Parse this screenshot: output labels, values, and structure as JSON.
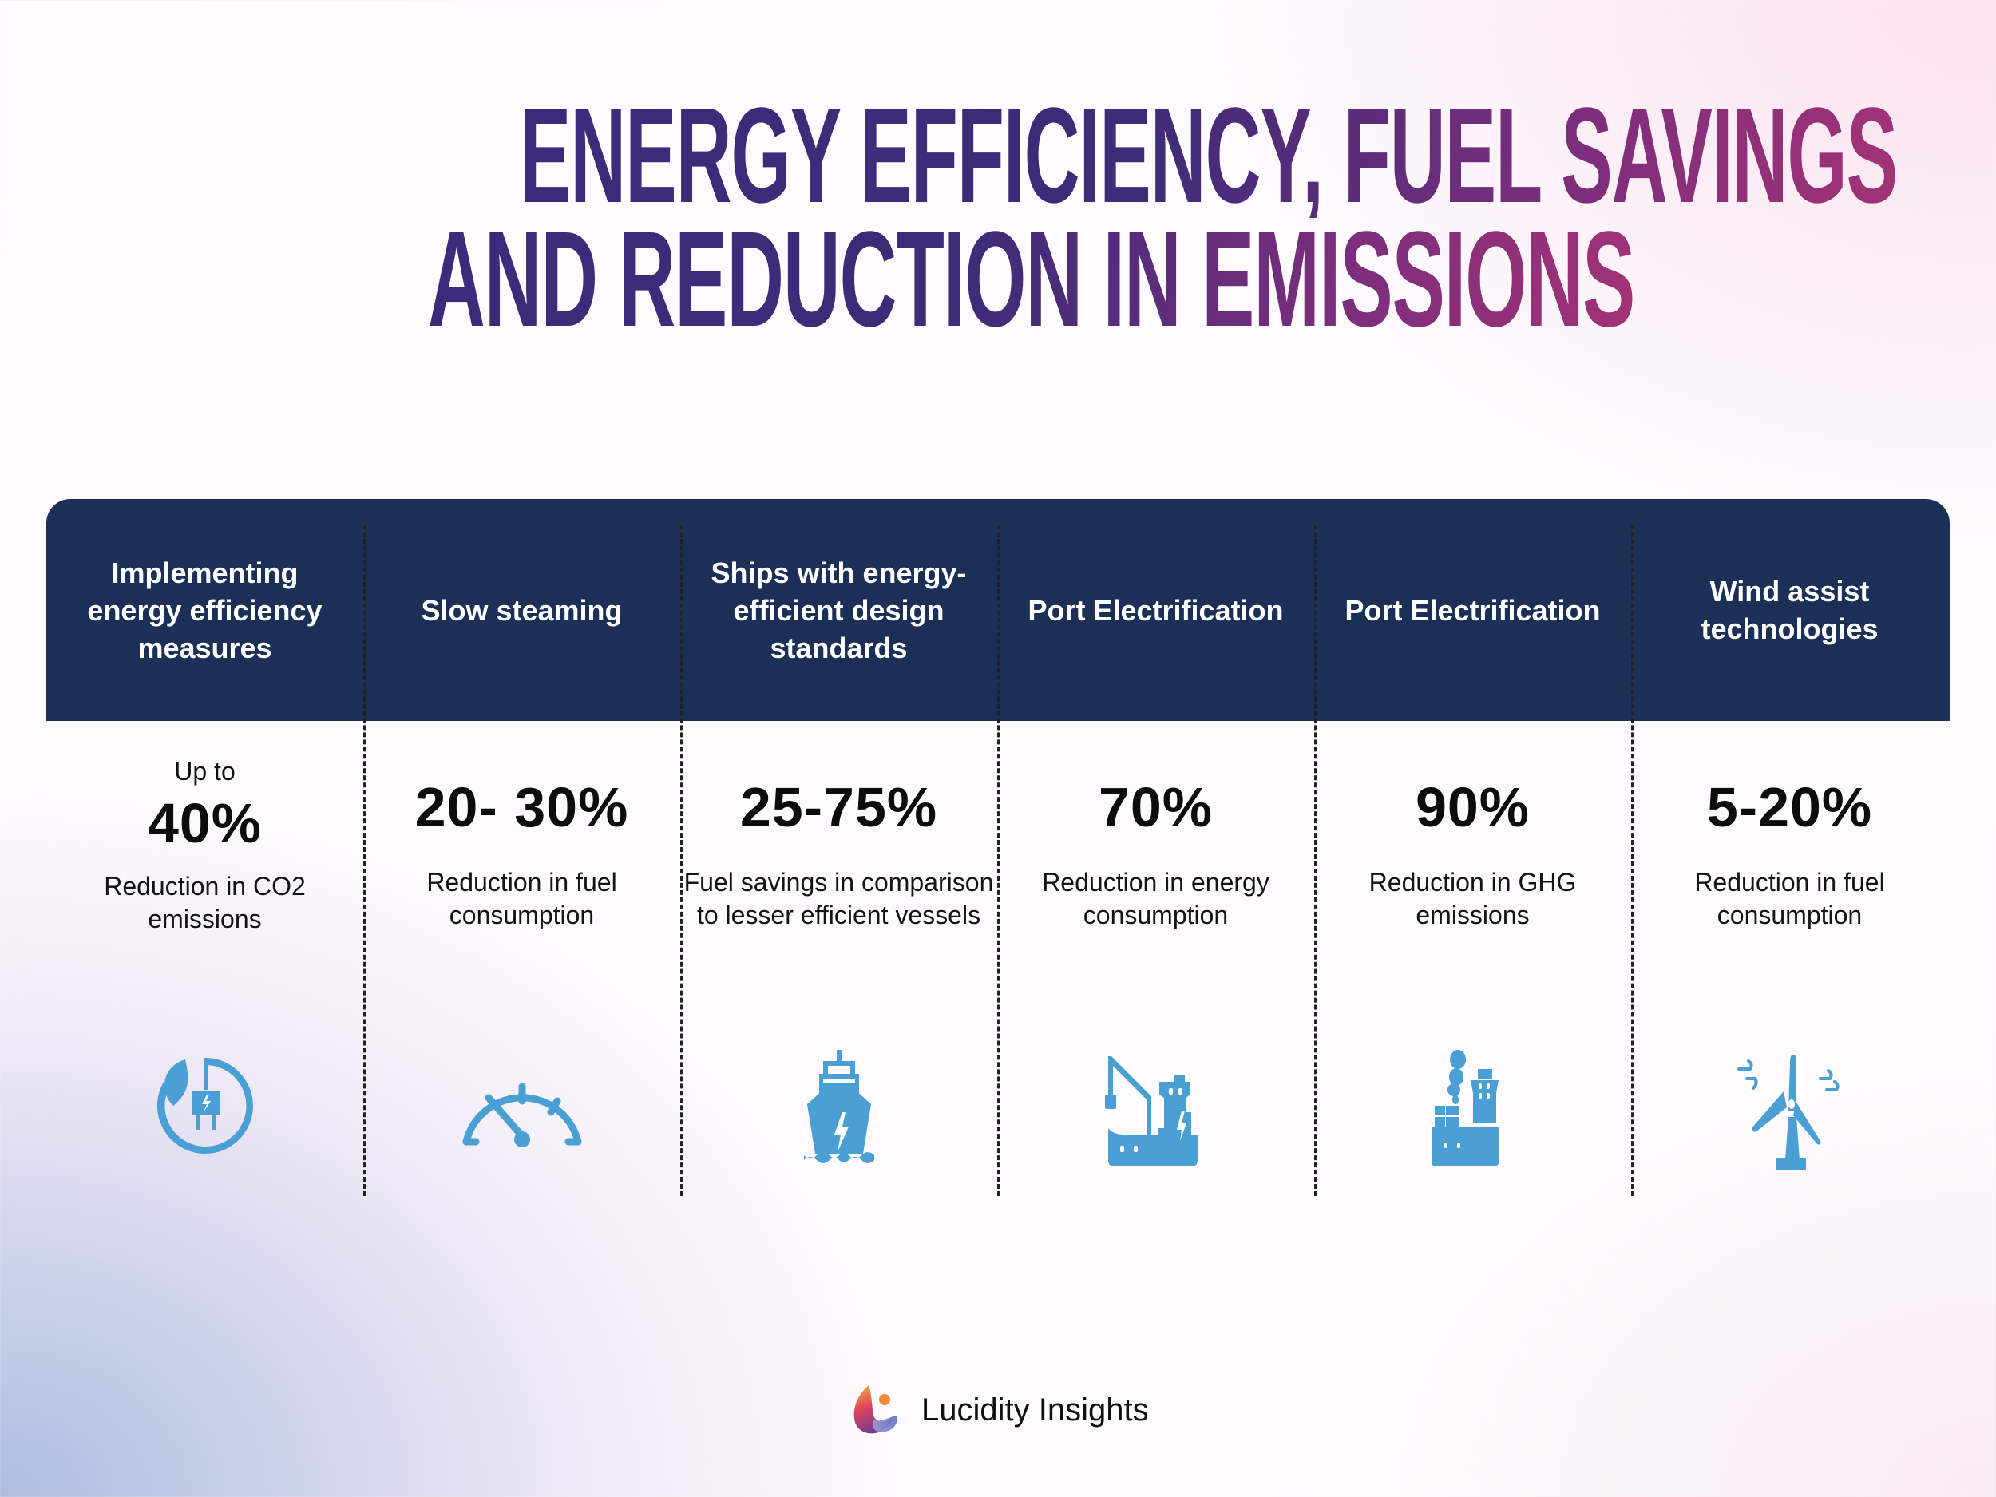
{
  "title": {
    "line1": "ENERGY EFFICIENCY, FUEL SAVINGS",
    "line2": "AND REDUCTION IN EMISSIONS",
    "gradient": [
      "#3a2c7a",
      "#a23276"
    ]
  },
  "colors": {
    "header_bg": "#1b2f57",
    "icon": "#4a9fd5"
  },
  "columns": [
    {
      "header": "Implementing energy efficiency measures",
      "prefix": "Up to",
      "value": "40%",
      "description": "Reduction in CO2 emissions",
      "icon": "leaf-plug-icon"
    },
    {
      "header": "Slow steaming",
      "prefix": "",
      "value": "20- 30%",
      "description": "Reduction in fuel consumption",
      "icon": "speedometer-icon"
    },
    {
      "header": "Ships with energy-efficient design standards",
      "prefix": "",
      "value": "25-75%",
      "description": "Fuel savings in comparison to lesser efficient vessels",
      "icon": "electric-ship-icon"
    },
    {
      "header": "Port Electrification",
      "prefix": "",
      "value": "70%",
      "description": "Reduction in energy consumption",
      "icon": "port-crane-icon"
    },
    {
      "header": "Port Electrification",
      "prefix": "",
      "value": "90%",
      "description": "Reduction in GHG emissions",
      "icon": "cargo-ship-icon"
    },
    {
      "header": "Wind assist technologies",
      "prefix": "",
      "value": "5-20%",
      "description": "Reduction in fuel consumption",
      "icon": "wind-turbine-icon"
    }
  ],
  "footer": {
    "brand": "Lucidity Insights"
  }
}
